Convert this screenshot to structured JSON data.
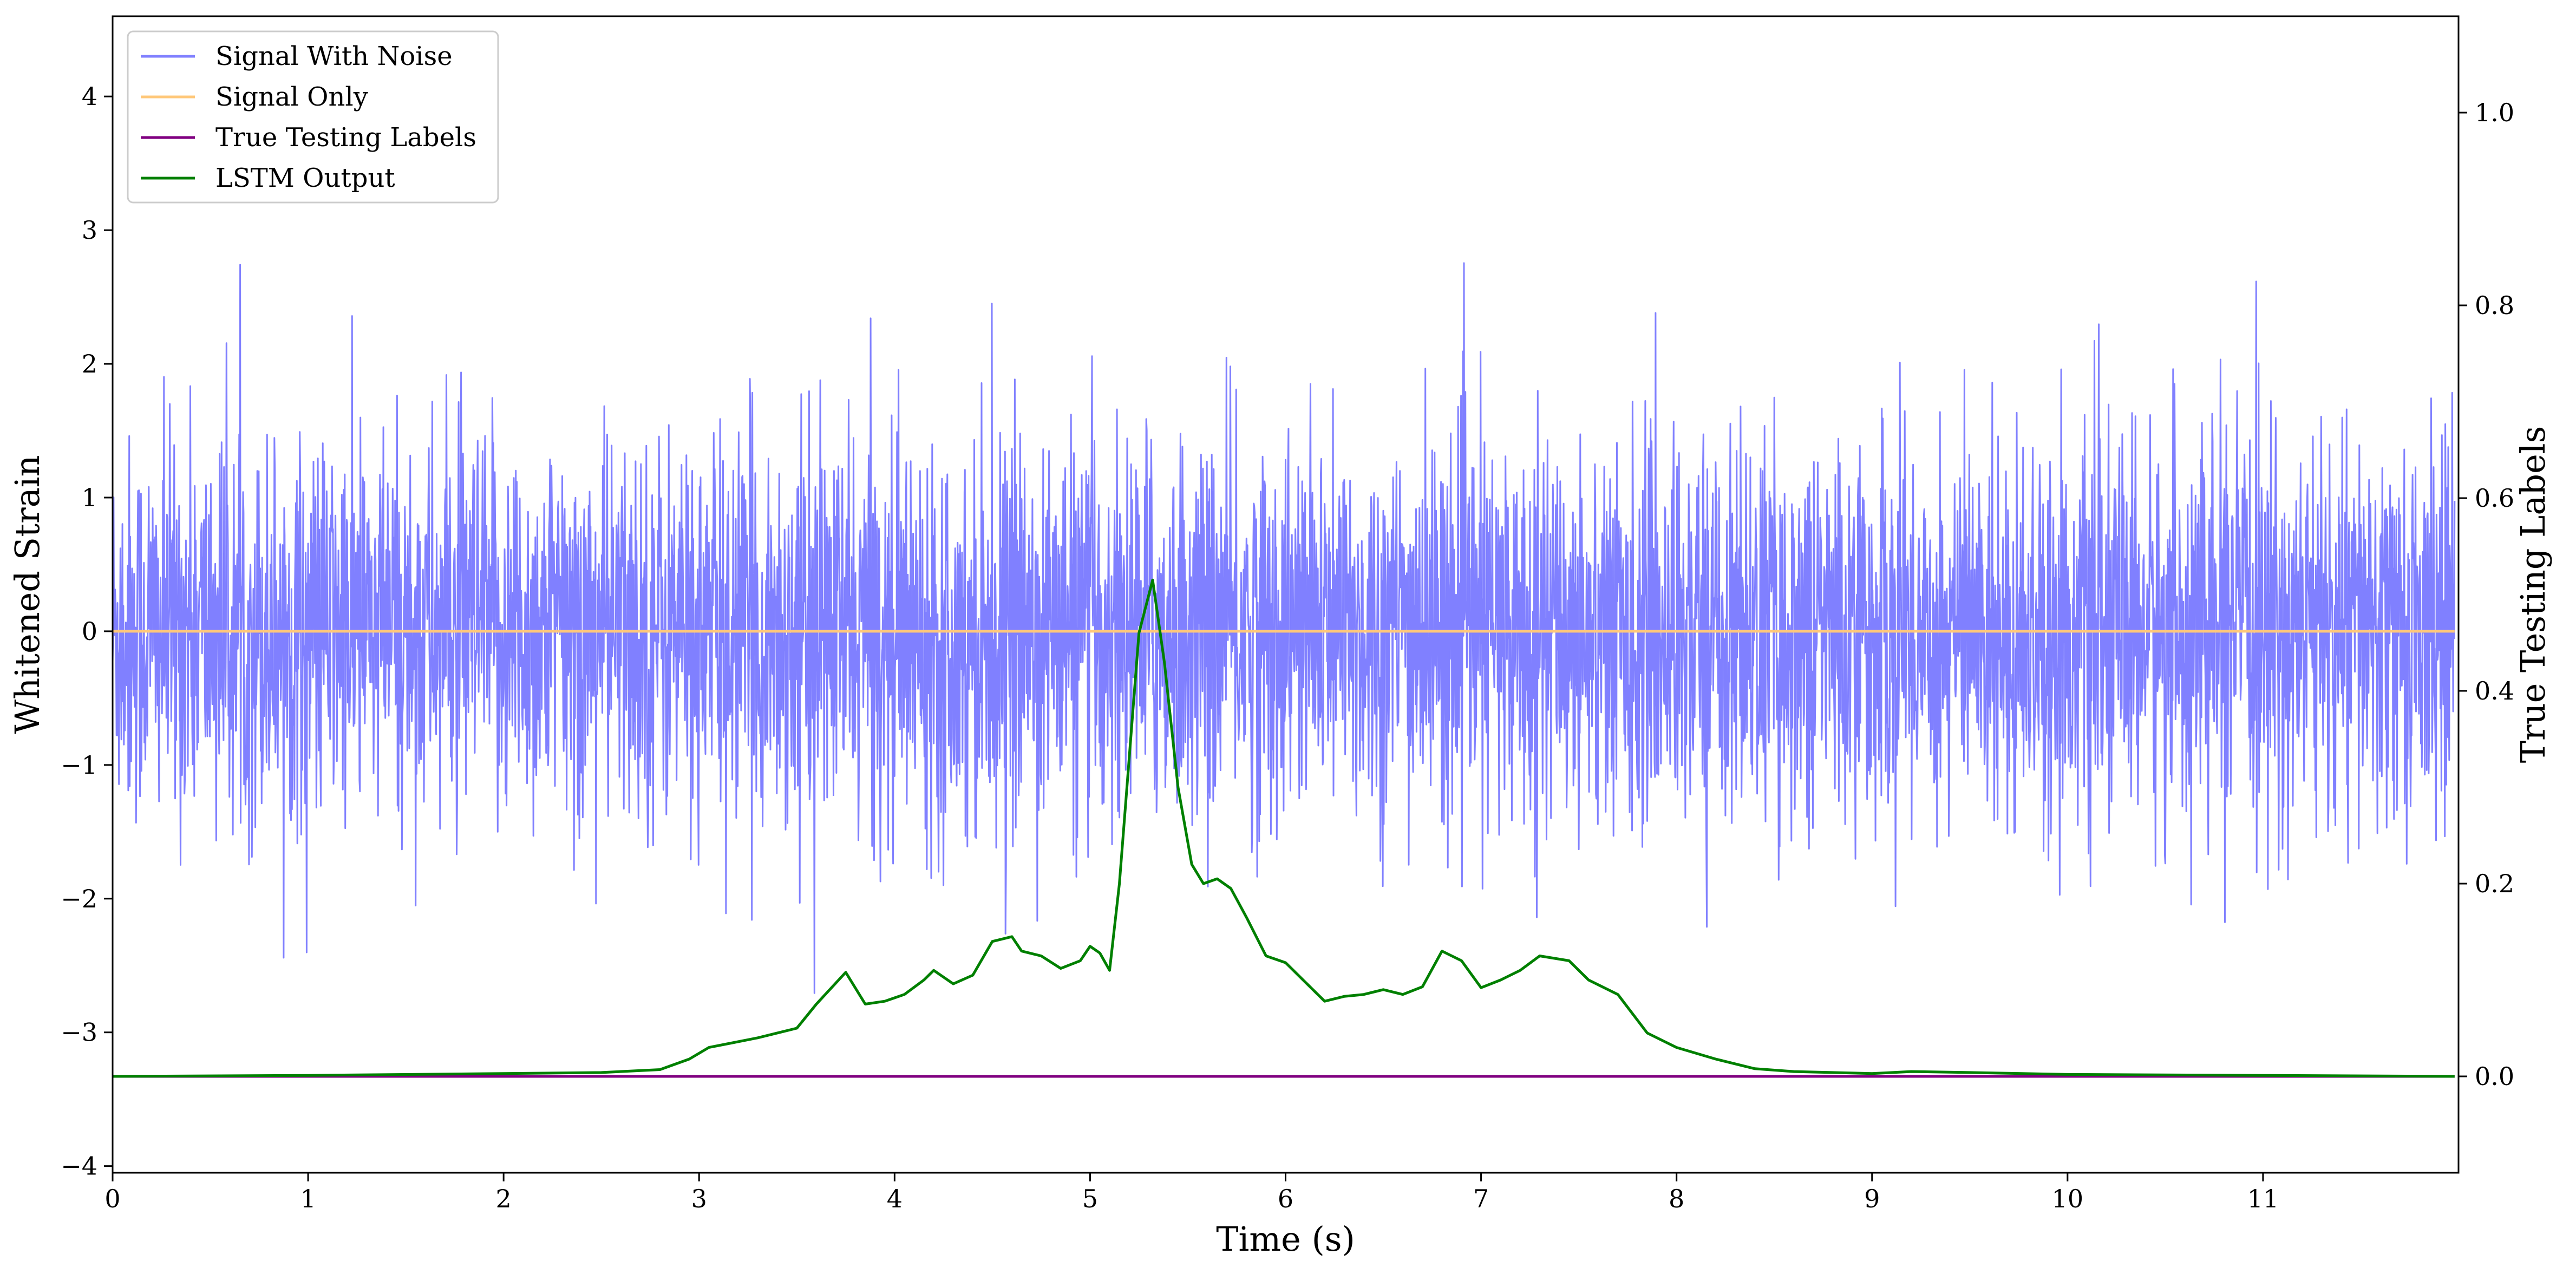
{
  "chart_data": {
    "type": "line",
    "title": "",
    "xlabel": "Time (s)",
    "ylabel": "Whitened Strain",
    "ylabel_right": "True Testing Labels",
    "xlim": [
      0,
      12
    ],
    "ylim": [
      -4.05,
      4.6
    ],
    "ylim_right": [
      -0.1,
      1.1
    ],
    "x_ticks": [
      0,
      1,
      2,
      3,
      4,
      5,
      6,
      7,
      8,
      9,
      10,
      11
    ],
    "x_tick_labels": [
      "0",
      "1",
      "2",
      "3",
      "4",
      "5",
      "6",
      "7",
      "8",
      "9",
      "10",
      "11"
    ],
    "y_ticks": [
      -4,
      -3,
      -2,
      -1,
      0,
      1,
      2,
      3,
      4
    ],
    "y_tick_labels": [
      "−4",
      "−3",
      "−2",
      "−1",
      "0",
      "1",
      "2",
      "3",
      "4"
    ],
    "y_ticks_right": [
      0.0,
      0.2,
      0.4,
      0.6,
      0.8,
      1.0
    ],
    "y_tick_labels_right": [
      "0.0",
      "0.2",
      "0.4",
      "0.6",
      "0.8",
      "1.0"
    ],
    "grid": false,
    "legend_position": "top-left",
    "series": [
      {
        "name": "Signal With Noise",
        "axis": "left",
        "color": "#8080ff",
        "style": "noise",
        "noise_std": 0.72,
        "sample_rate": 1024
      },
      {
        "name": "Signal Only",
        "axis": "left",
        "color": "#ffc87a",
        "x": [
          0,
          11.98
        ],
        "y": [
          0,
          0
        ]
      },
      {
        "name": "True Testing Labels",
        "axis": "right",
        "color": "#800080",
        "x": [
          0,
          11.98
        ],
        "y": [
          0,
          0
        ]
      },
      {
        "name": "LSTM Output",
        "axis": "right",
        "color": "#008000",
        "x": [
          0,
          1.0,
          2.0,
          2.5,
          2.8,
          2.95,
          3.05,
          3.15,
          3.3,
          3.5,
          3.6,
          3.75,
          3.85,
          3.95,
          4.05,
          4.15,
          4.2,
          4.3,
          4.4,
          4.5,
          4.6,
          4.65,
          4.75,
          4.85,
          4.95,
          5.0,
          5.05,
          5.1,
          5.15,
          5.25,
          5.32,
          5.38,
          5.45,
          5.52,
          5.58,
          5.65,
          5.72,
          5.8,
          5.9,
          6.0,
          6.1,
          6.2,
          6.3,
          6.4,
          6.5,
          6.6,
          6.7,
          6.8,
          6.9,
          7.0,
          7.1,
          7.2,
          7.3,
          7.45,
          7.55,
          7.7,
          7.85,
          8.0,
          8.2,
          8.4,
          8.6,
          9.0,
          9.2,
          9.5,
          10.0,
          11.0,
          11.98
        ],
        "y": [
          0,
          0.001,
          0.003,
          0.004,
          0.007,
          0.018,
          0.03,
          0.034,
          0.04,
          0.05,
          0.075,
          0.108,
          0.075,
          0.078,
          0.085,
          0.1,
          0.11,
          0.096,
          0.105,
          0.14,
          0.145,
          0.13,
          0.125,
          0.112,
          0.12,
          0.135,
          0.128,
          0.11,
          0.2,
          0.46,
          0.515,
          0.43,
          0.3,
          0.22,
          0.2,
          0.205,
          0.195,
          0.165,
          0.125,
          0.118,
          0.098,
          0.078,
          0.083,
          0.085,
          0.09,
          0.085,
          0.093,
          0.13,
          0.12,
          0.092,
          0.1,
          0.11,
          0.125,
          0.12,
          0.1,
          0.085,
          0.045,
          0.03,
          0.018,
          0.008,
          0.005,
          0.003,
          0.005,
          0.004,
          0.002,
          0.001,
          0
        ]
      }
    ]
  }
}
